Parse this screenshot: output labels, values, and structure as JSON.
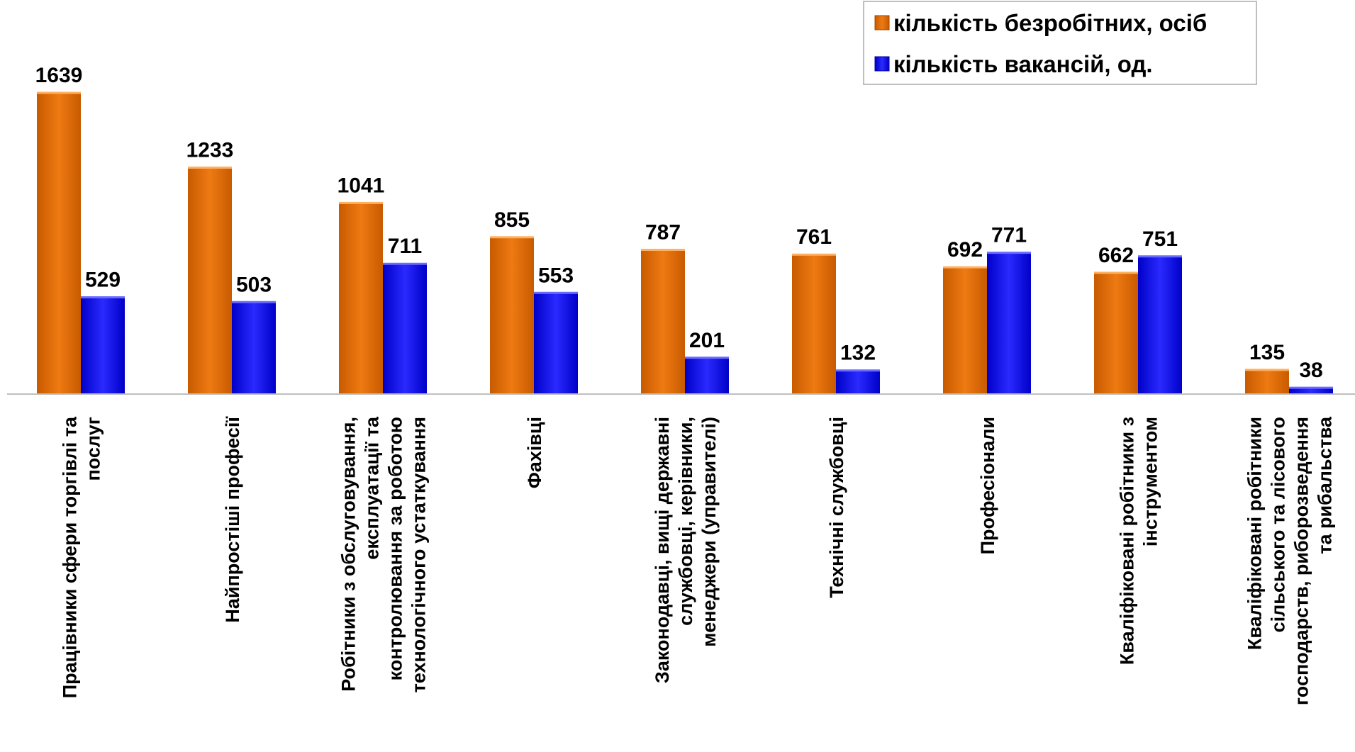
{
  "chart_data": {
    "type": "bar",
    "title": "",
    "xlabel": "",
    "ylabel": "",
    "ylim": [
      0,
      1639
    ],
    "grid": false,
    "legend_position": "top-right",
    "categories": [
      [
        "Працівники сфери торгівлі та",
        "послуг"
      ],
      [
        "Найпростіші професії"
      ],
      [
        "Робітники з обслуговування,",
        "експлуатації та",
        "контролювання за роботою",
        "технологічного устаткування"
      ],
      [
        "Фахівці"
      ],
      [
        "Законодавці, вищі державні",
        "службовці, керівники,",
        "менеджери (управителі)"
      ],
      [
        "Технічні службовці"
      ],
      [
        "Професіонали"
      ],
      [
        "Кваліфіковані робітники з",
        "інструментом"
      ],
      [
        "Кваліфіковані робітники",
        "сільського та лісового",
        "господарств, риборозведення",
        "та рибальства"
      ]
    ],
    "series": [
      {
        "name": "кількість безробітних, осіб",
        "color": "#E2700A",
        "values": [
          1639,
          1233,
          1041,
          855,
          787,
          761,
          692,
          662,
          135
        ]
      },
      {
        "name": "кількість вакансій, од.",
        "color": "#1414F0",
        "values": [
          529,
          503,
          711,
          553,
          201,
          132,
          771,
          751,
          38
        ]
      }
    ]
  }
}
